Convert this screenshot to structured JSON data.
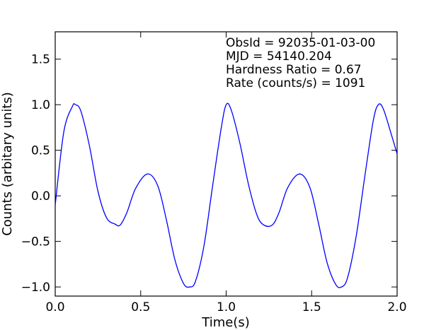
{
  "chart_data": {
    "type": "line",
    "title": "",
    "xlabel": "Time(s)",
    "ylabel": "Counts (arbitary units)",
    "xlim": [
      0.0,
      2.0
    ],
    "ylim": [
      -1.1,
      1.8
    ],
    "xticks": [
      0.0,
      0.5,
      1.0,
      1.5,
      2.0
    ],
    "xtick_labels": [
      "0.0",
      "0.5",
      "1.0",
      "1.5",
      "2.0"
    ],
    "yticks": [
      -1.0,
      -0.5,
      0.0,
      0.5,
      1.0,
      1.5
    ],
    "ytick_labels": [
      "−1.0",
      "−0.5",
      "0.0",
      "0.5",
      "1.0",
      "1.5"
    ],
    "grid": false,
    "line_color": "#0000ff",
    "annotations": [
      "ObsId = 92035-01-03-00",
      "MJD = 54140.204",
      "Hardness Ratio = 0.67",
      "Rate (counts/s) = 1091"
    ],
    "series": [
      {
        "x": [
          0.0,
          0.05,
          0.1,
          0.118,
          0.15,
          0.2,
          0.25,
          0.3,
          0.35,
          0.38,
          0.42,
          0.47,
          0.54,
          0.6,
          0.65,
          0.7,
          0.75,
          0.785,
          0.82,
          0.87,
          0.92,
          0.97,
          1.0,
          1.03,
          1.08,
          1.13,
          1.18,
          1.22,
          1.27,
          1.31,
          1.36,
          1.43,
          1.49,
          1.54,
          1.59,
          1.64,
          1.675,
          1.71,
          1.76,
          1.81,
          1.86,
          1.89,
          1.92,
          1.97,
          2.0
        ],
        "y": [
          -0.1,
          0.7,
          0.98,
          1.0,
          0.93,
          0.55,
          0.05,
          -0.24,
          -0.31,
          -0.32,
          -0.18,
          0.08,
          0.24,
          0.11,
          -0.26,
          -0.7,
          -0.96,
          -1.0,
          -0.94,
          -0.55,
          0.1,
          0.73,
          1.0,
          0.94,
          0.58,
          0.13,
          -0.21,
          -0.32,
          -0.32,
          -0.18,
          0.09,
          0.24,
          0.09,
          -0.3,
          -0.73,
          -0.97,
          -1.0,
          -0.9,
          -0.45,
          0.2,
          0.82,
          1.0,
          0.95,
          0.65,
          0.46
        ]
      }
    ]
  }
}
